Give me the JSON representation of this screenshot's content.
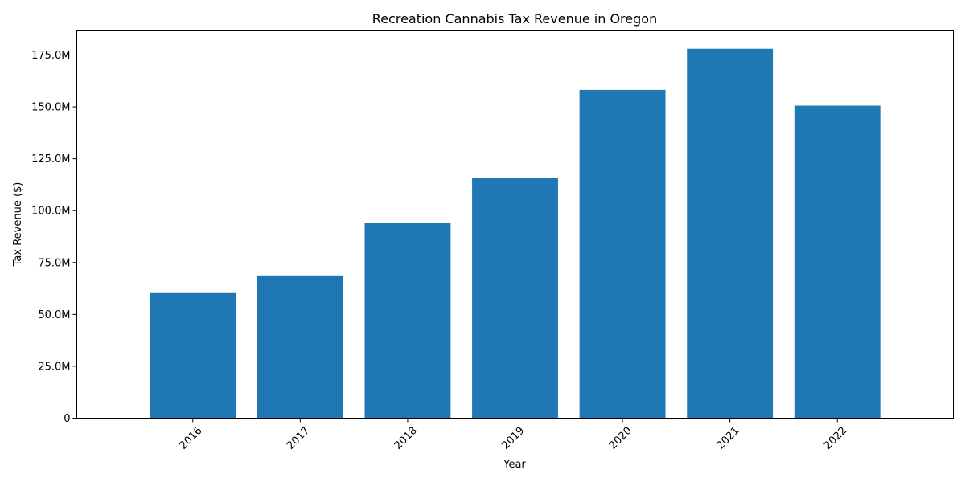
{
  "chart_data": {
    "type": "bar",
    "title": "Recreation Cannabis Tax Revenue in Oregon",
    "xlabel": "Year",
    "ylabel": "Tax Revenue ($)",
    "categories": [
      "2016",
      "2017",
      "2018",
      "2019",
      "2020",
      "2021",
      "2022"
    ],
    "values": [
      60300000,
      68800000,
      94200000,
      115800000,
      158200000,
      178000000,
      150600000
    ],
    "ylim": [
      0,
      187000000
    ],
    "yticks": [
      0,
      25000000,
      50000000,
      75000000,
      100000000,
      125000000,
      150000000,
      175000000
    ],
    "ytick_labels": [
      "0",
      "25.0M",
      "50.0M",
      "75.0M",
      "100.0M",
      "125.0M",
      "150.0M",
      "175.0M"
    ],
    "color": "#1f77b4",
    "grid": false,
    "xtick_rotation": 45
  }
}
